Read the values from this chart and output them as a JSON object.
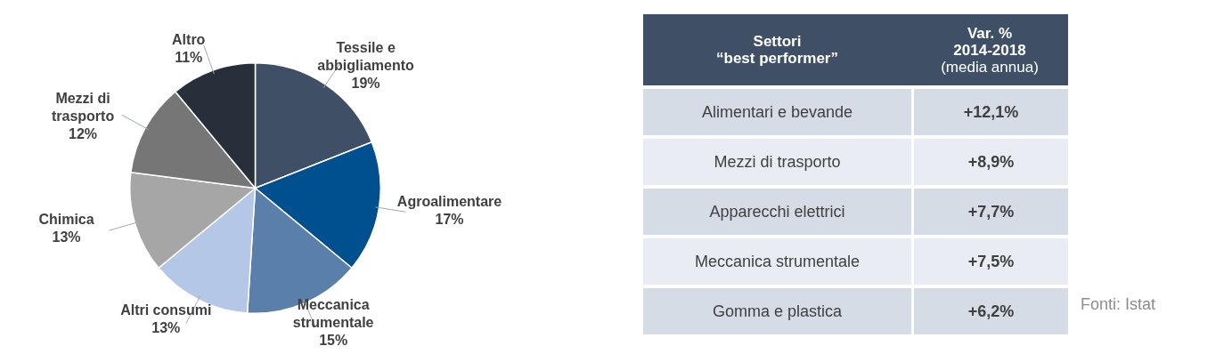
{
  "chart_data": [
    {
      "type": "pie",
      "categories": [
        "Tessile e abbigliamento",
        "Agroalimentare",
        "Meccanica strumentale",
        "Altri consumi",
        "Chimica",
        "Mezzi di trasporto",
        "Altro"
      ],
      "values": [
        19,
        17,
        15,
        13,
        13,
        12,
        11
      ],
      "colors": [
        "#3f5066",
        "#00508f",
        "#5b7fab",
        "#b4c7e7",
        "#a6a6a6",
        "#767676",
        "#262f3a"
      ],
      "value_labels": [
        "19%",
        "17%",
        "15%",
        "13%",
        "13%",
        "12%",
        "11%"
      ],
      "legend": false
    },
    {
      "type": "other",
      "categories": [
        "Alimentari e bevande",
        "Mezzi di trasporto",
        "Apparecchi elettrici",
        "Meccanica strumentale",
        "Gomma e plastica"
      ],
      "value_labels": [
        "+12,1%",
        "+8,9%",
        "+7,7%",
        "+7,5%",
        "+6,2%"
      ],
      "annotations": [
        "Settori\n“best performer”",
        "Var. %\n2014-2018\n(media annua)",
        "Fonti: Istat"
      ]
    }
  ]
}
